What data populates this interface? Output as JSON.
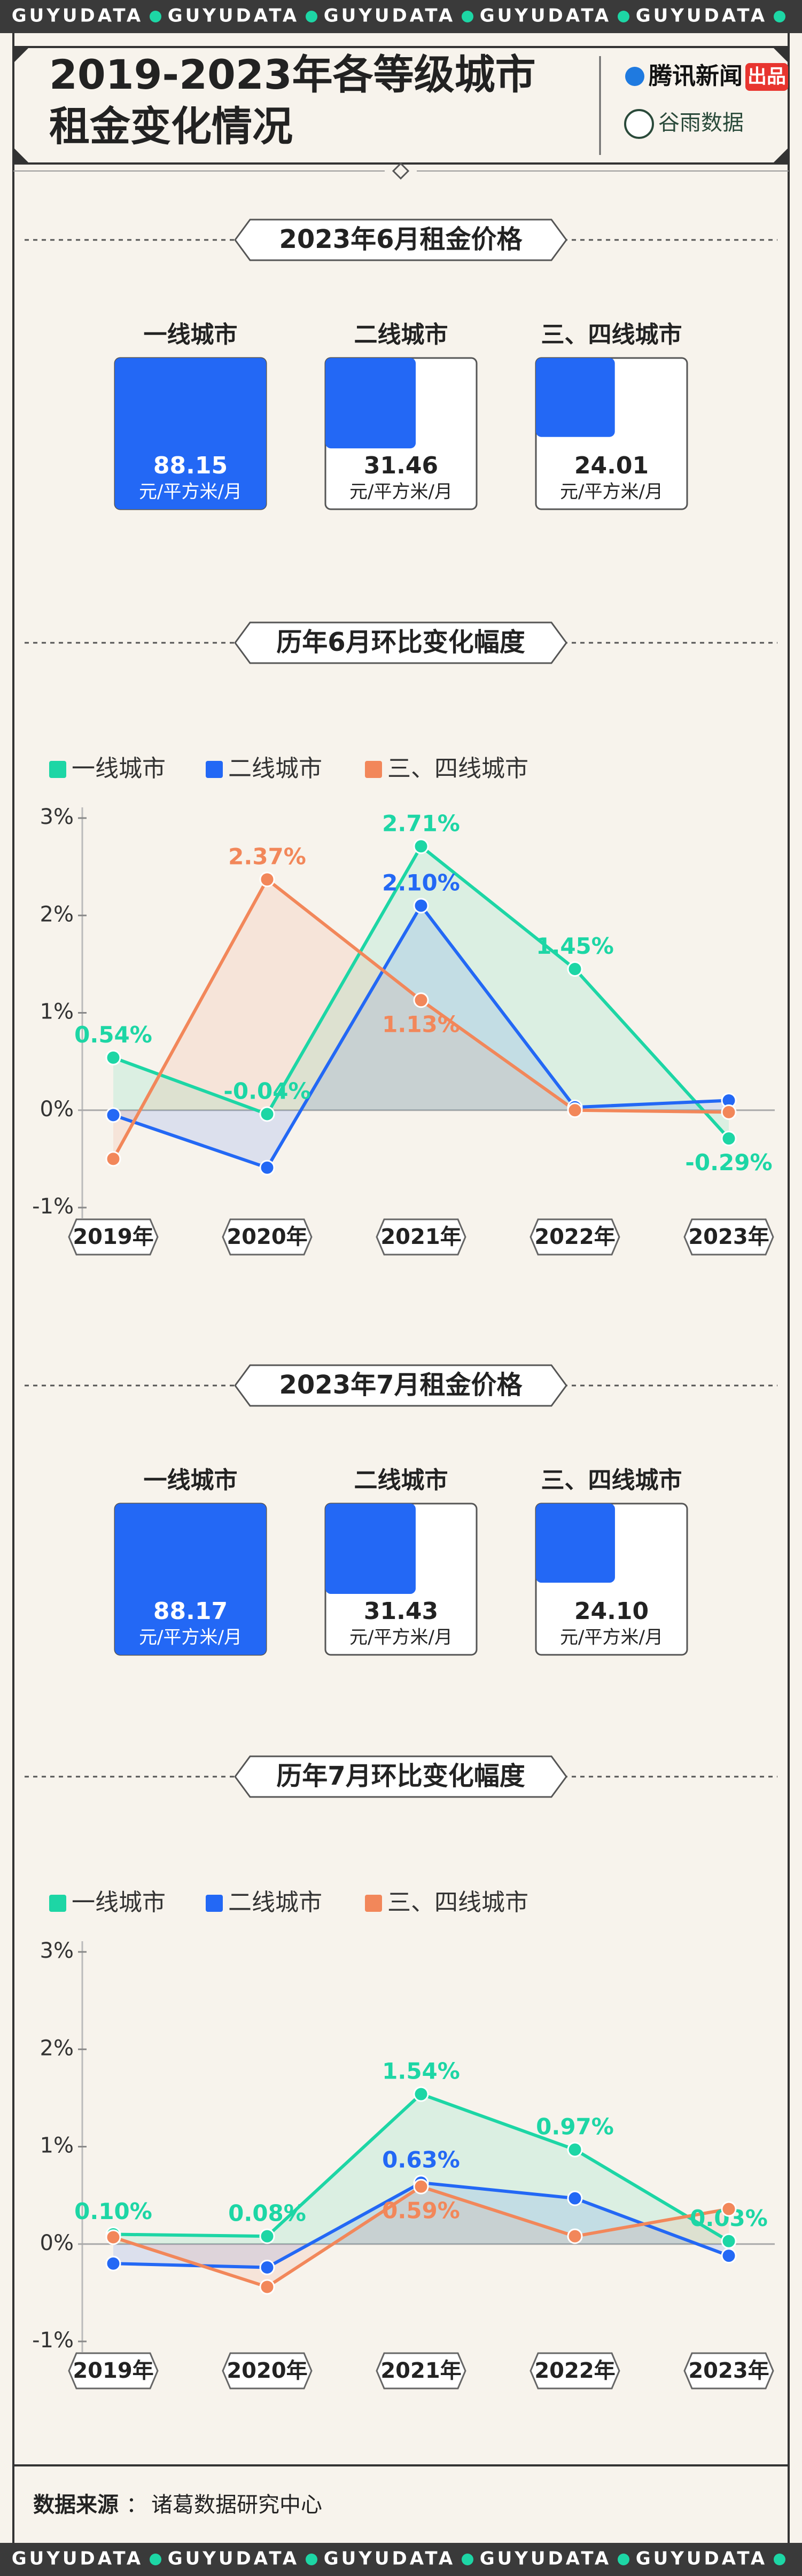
{
  "banner": "GUYUDATA",
  "header": {
    "title_lines": [
      "2019-2023年各等级城市",
      "租金变化情况"
    ],
    "logos": [
      "腾讯新闻",
      "出品",
      "谷雨数据"
    ]
  },
  "chart_data": [
    {
      "type": "square",
      "title": "2023年6月租金价格",
      "categories": [
        "一线城市",
        "二线城市",
        "三、四线城市"
      ],
      "values": [
        88.15,
        31.46,
        24.01
      ],
      "unit": "元/平方米/月",
      "color": "#2368f5"
    },
    {
      "type": "line",
      "title": "历年6月环比变化幅度",
      "categories": [
        "2019年",
        "2020年",
        "2021年",
        "2022年",
        "2023年"
      ],
      "series": [
        {
          "name": "一线城市",
          "color": "#1dd6a5",
          "values": [
            0.54,
            -0.04,
            2.71,
            1.45,
            -0.29
          ],
          "value_labels": [
            "0.54%",
            "-0.04%",
            "2.71%",
            "1.45%",
            "-0.29%"
          ]
        },
        {
          "name": "二线城市",
          "color": "#2368f5",
          "values": [
            -0.05,
            -0.59,
            2.1,
            0.03,
            0.1
          ],
          "value_labels": [
            null,
            null,
            "2.10%",
            null,
            null
          ]
        },
        {
          "name": "三、四线城市",
          "color": "#f2875a",
          "values": [
            -0.5,
            2.37,
            1.13,
            0,
            -0.02
          ],
          "value_labels": [
            null,
            "2.37%",
            "1.13%",
            null,
            null
          ]
        }
      ],
      "ylim": [
        -1,
        3
      ],
      "yticks": [
        {
          "value": -1,
          "label": "-1%"
        },
        {
          "value": 0,
          "label": "0%"
        },
        {
          "value": 1,
          "label": "1%"
        },
        {
          "value": 2,
          "label": "2%"
        },
        {
          "value": 3,
          "label": "3%"
        }
      ],
      "legend": "top-left"
    },
    {
      "type": "square",
      "title": "2023年7月租金价格",
      "categories": [
        "一线城市",
        "二线城市",
        "三、四线城市"
      ],
      "values": [
        88.17,
        31.43,
        24.1
      ],
      "value_labels": [
        "88.17",
        "31.43",
        "24.10"
      ],
      "unit": "元/平方米/月",
      "color": "#2368f5"
    },
    {
      "type": "line",
      "title": "历年7月环比变化幅度",
      "categories": [
        "2019年",
        "2020年",
        "2021年",
        "2022年",
        "2023年"
      ],
      "series": [
        {
          "name": "一线城市",
          "color": "#1dd6a5",
          "values": [
            0.1,
            0.08,
            1.54,
            0.97,
            0.03
          ],
          "value_labels": [
            "0.10%",
            "0.08%",
            "1.54%",
            "0.97%",
            "0.03%"
          ]
        },
        {
          "name": "二线城市",
          "color": "#2368f5",
          "values": [
            -0.2,
            -0.24,
            0.63,
            0.47,
            -0.12
          ],
          "value_labels": [
            null,
            null,
            "0.63%",
            null,
            null
          ]
        },
        {
          "name": "三、四线城市",
          "color": "#f2875a",
          "values": [
            0.07,
            -0.44,
            0.59,
            0.08,
            0.36
          ],
          "value_labels": [
            null,
            null,
            "0.59%",
            null,
            null
          ]
        }
      ],
      "ylim": [
        -1,
        3
      ],
      "yticks": [
        {
          "value": -1,
          "label": "-1%"
        },
        {
          "value": 0,
          "label": "0%"
        },
        {
          "value": 1,
          "label": "1%"
        },
        {
          "value": 2,
          "label": "2%"
        },
        {
          "value": 3,
          "label": "3%"
        }
      ],
      "legend": "top-left"
    }
  ],
  "source": {
    "label": "数据来源",
    "separator": "：",
    "text": "诸葛数据研究中心"
  }
}
